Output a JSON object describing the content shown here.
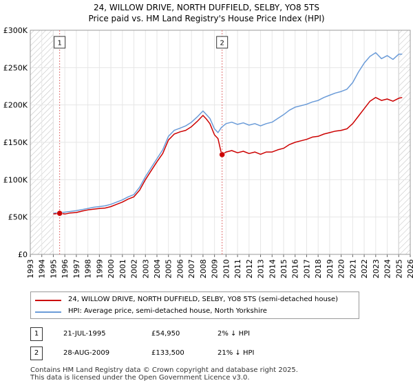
{
  "header": {
    "title_line1": "24, WILLOW DRIVE, NORTH DUFFIELD, SELBY, YO8 5TS",
    "title_line2": "Price paid vs. HM Land Registry's House Price Index (HPI)"
  },
  "colors": {
    "property": "#cc0000",
    "hpi": "#6a9bd8",
    "hatch": "#bbbbbb",
    "grid": "#e6e6e6",
    "marker_line": "#e07070"
  },
  "chart_data": {
    "type": "line",
    "xlim": [
      1993,
      2026
    ],
    "ylim": [
      0,
      300000
    ],
    "yticks": [
      0,
      50000,
      100000,
      150000,
      200000,
      250000,
      300000
    ],
    "ytick_labels": [
      "£0",
      "£50K",
      "£100K",
      "£150K",
      "£200K",
      "£250K",
      "£300K"
    ],
    "xticks": [
      1993,
      1994,
      1995,
      1996,
      1997,
      1998,
      1999,
      2000,
      2001,
      2002,
      2003,
      2004,
      2005,
      2006,
      2007,
      2008,
      2009,
      2010,
      2011,
      2012,
      2013,
      2014,
      2015,
      2016,
      2017,
      2018,
      2019,
      2020,
      2021,
      2022,
      2023,
      2024,
      2025,
      2026
    ],
    "hatched_regions": [
      [
        1993,
        1995.0
      ],
      [
        2025.0,
        2026
      ]
    ],
    "series": [
      {
        "name": "24, WILLOW DRIVE, NORTH DUFFIELD, SELBY, YO8 5TS (semi-detached house)",
        "color": "#cc0000",
        "x": [
          1995.0,
          1995.55,
          1996.0,
          1996.5,
          1997.0,
          1997.5,
          1998.0,
          1998.5,
          1999.0,
          1999.5,
          2000.0,
          2000.5,
          2001.0,
          2001.5,
          2002.0,
          2002.5,
          2003.0,
          2003.5,
          2004.0,
          2004.5,
          2005.0,
          2005.5,
          2006.0,
          2006.5,
          2007.0,
          2007.5,
          2008.0,
          2008.3,
          2008.6,
          2009.0,
          2009.3,
          2009.62,
          2010.0,
          2010.5,
          2011.0,
          2011.5,
          2012.0,
          2012.5,
          2013.0,
          2013.5,
          2014.0,
          2014.5,
          2015.0,
          2015.5,
          2016.0,
          2016.5,
          2017.0,
          2017.5,
          2018.0,
          2018.5,
          2019.0,
          2019.5,
          2020.0,
          2020.5,
          2021.0,
          2021.5,
          2022.0,
          2022.5,
          2023.0,
          2023.5,
          2024.0,
          2024.5,
          2025.0,
          2025.3
        ],
        "y": [
          54000,
          54950,
          54000,
          55500,
          56000,
          58000,
          59500,
          60500,
          61500,
          62000,
          64000,
          67000,
          70000,
          74000,
          77000,
          86000,
          100000,
          112000,
          124000,
          135000,
          153000,
          161000,
          164000,
          166000,
          171000,
          178000,
          186000,
          181000,
          175000,
          160000,
          155000,
          133500,
          137000,
          139000,
          136000,
          138000,
          135000,
          137000,
          134000,
          137000,
          137000,
          140000,
          142000,
          147000,
          150000,
          152000,
          154000,
          157000,
          158000,
          161000,
          163000,
          165000,
          166000,
          168000,
          175000,
          185000,
          195000,
          205000,
          210000,
          206000,
          208000,
          205000,
          209000,
          210000
        ]
      },
      {
        "name": "HPI: Average price, semi-detached house, North Yorkshire",
        "color": "#6a9bd8",
        "x": [
          1995.0,
          1995.5,
          1996.0,
          1996.5,
          1997.0,
          1997.5,
          1998.0,
          1998.5,
          1999.0,
          1999.5,
          2000.0,
          2000.5,
          2001.0,
          2001.5,
          2002.0,
          2002.5,
          2003.0,
          2003.5,
          2004.0,
          2004.5,
          2005.0,
          2005.5,
          2006.0,
          2006.5,
          2007.0,
          2007.5,
          2008.0,
          2008.3,
          2008.6,
          2009.0,
          2009.3,
          2009.6,
          2010.0,
          2010.5,
          2011.0,
          2011.5,
          2012.0,
          2012.5,
          2013.0,
          2013.5,
          2014.0,
          2014.5,
          2015.0,
          2015.5,
          2016.0,
          2016.5,
          2017.0,
          2017.5,
          2018.0,
          2018.5,
          2019.0,
          2019.5,
          2020.0,
          2020.5,
          2021.0,
          2021.5,
          2022.0,
          2022.5,
          2023.0,
          2023.5,
          2024.0,
          2024.5,
          2025.0,
          2025.3
        ],
        "y": [
          55000,
          56000,
          56500,
          57500,
          58500,
          60000,
          61500,
          63000,
          64000,
          65000,
          67000,
          70000,
          73000,
          77000,
          80000,
          90000,
          104000,
          116000,
          128000,
          140000,
          158000,
          166000,
          169000,
          172000,
          177000,
          184000,
          192000,
          187000,
          182000,
          168000,
          163000,
          170000,
          175000,
          177000,
          174000,
          176000,
          173000,
          175000,
          172000,
          175000,
          177000,
          182000,
          187000,
          193000,
          197000,
          199000,
          201000,
          204000,
          206000,
          210000,
          213000,
          216000,
          218000,
          221000,
          230000,
          244000,
          256000,
          265000,
          270000,
          262000,
          266000,
          261000,
          268000,
          268000
        ]
      }
    ],
    "sales": [
      {
        "label": "1",
        "x": 1995.55,
        "y": 54950
      },
      {
        "label": "2",
        "x": 2009.66,
        "y": 133500
      }
    ]
  },
  "legend": {
    "property_label": "24, WILLOW DRIVE, NORTH DUFFIELD, SELBY, YO8 5TS (semi-detached house)",
    "hpi_label": "HPI: Average price, semi-detached house, North Yorkshire"
  },
  "transactions": [
    {
      "num": "1",
      "date": "21-JUL-1995",
      "price": "£54,950",
      "hpi": "2% ↓ HPI"
    },
    {
      "num": "2",
      "date": "28-AUG-2009",
      "price": "£133,500",
      "hpi": "21% ↓ HPI"
    }
  ],
  "footer": {
    "line1": "Contains HM Land Registry data © Crown copyright and database right 2025.",
    "line2": "This data is licensed under the Open Government Licence v3.0."
  }
}
